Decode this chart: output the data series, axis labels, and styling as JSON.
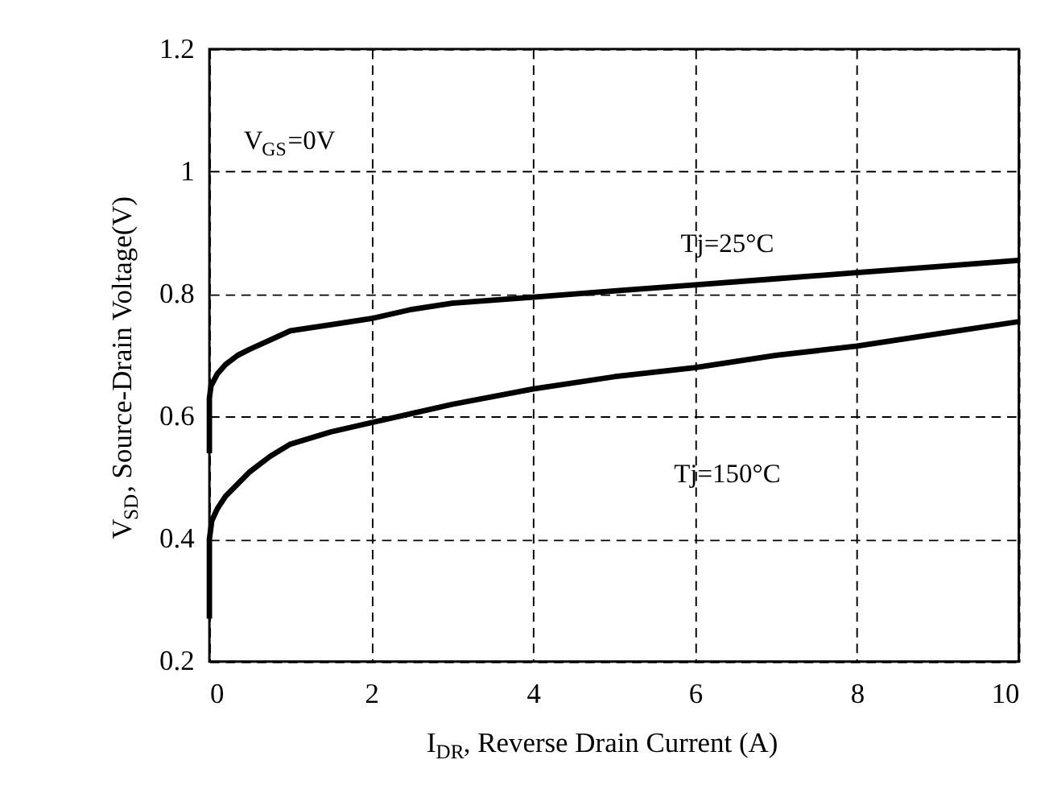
{
  "chart_data": {
    "type": "line",
    "xlabel": "I$_{DR}$, Reverse Drain Current (A)",
    "ylabel": "V$_{SD}$, Source-Drain Voltage(V)",
    "series": [
      {
        "color": "#000000",
        "x": [
          0,
          0,
          0.02,
          0.1,
          0.2,
          0.35,
          0.5,
          0.75,
          1,
          1.5,
          2,
          2.5,
          3,
          4,
          5,
          6,
          7,
          8,
          9,
          10
        ],
        "values": [
          0.54,
          0.63,
          0.65,
          0.67,
          0.685,
          0.7,
          0.71,
          0.725,
          0.74,
          0.75,
          0.76,
          0.775,
          0.785,
          0.795,
          0.805,
          0.815,
          0.825,
          0.835,
          0.845,
          0.855
        ]
      },
      {
        "color": "#000000",
        "x": [
          0,
          0,
          0.03,
          0.1,
          0.2,
          0.35,
          0.5,
          0.75,
          1,
          1.5,
          2,
          2.5,
          3,
          4,
          5,
          6,
          7,
          8,
          9,
          10
        ],
        "values": [
          0.27,
          0.4,
          0.43,
          0.45,
          0.47,
          0.49,
          0.51,
          0.535,
          0.555,
          0.575,
          0.59,
          0.605,
          0.62,
          0.645,
          0.665,
          0.68,
          0.7,
          0.715,
          0.735,
          0.755
        ]
      }
    ],
    "annotations": [
      "V$_{GS}$=0V",
      "Tj=25°C",
      "Tj=150°C"
    ],
    "xlim": [
      0,
      10
    ],
    "xticks": [
      0,
      2,
      4,
      6,
      8,
      10
    ],
    "ylim": [
      0.2,
      1.2
    ],
    "yticks": [
      0.2,
      0.4,
      0.6,
      0.8,
      1,
      1.2
    ],
    "grid": true,
    "marker": "none",
    "line_style": "solid",
    "legend": false
  }
}
